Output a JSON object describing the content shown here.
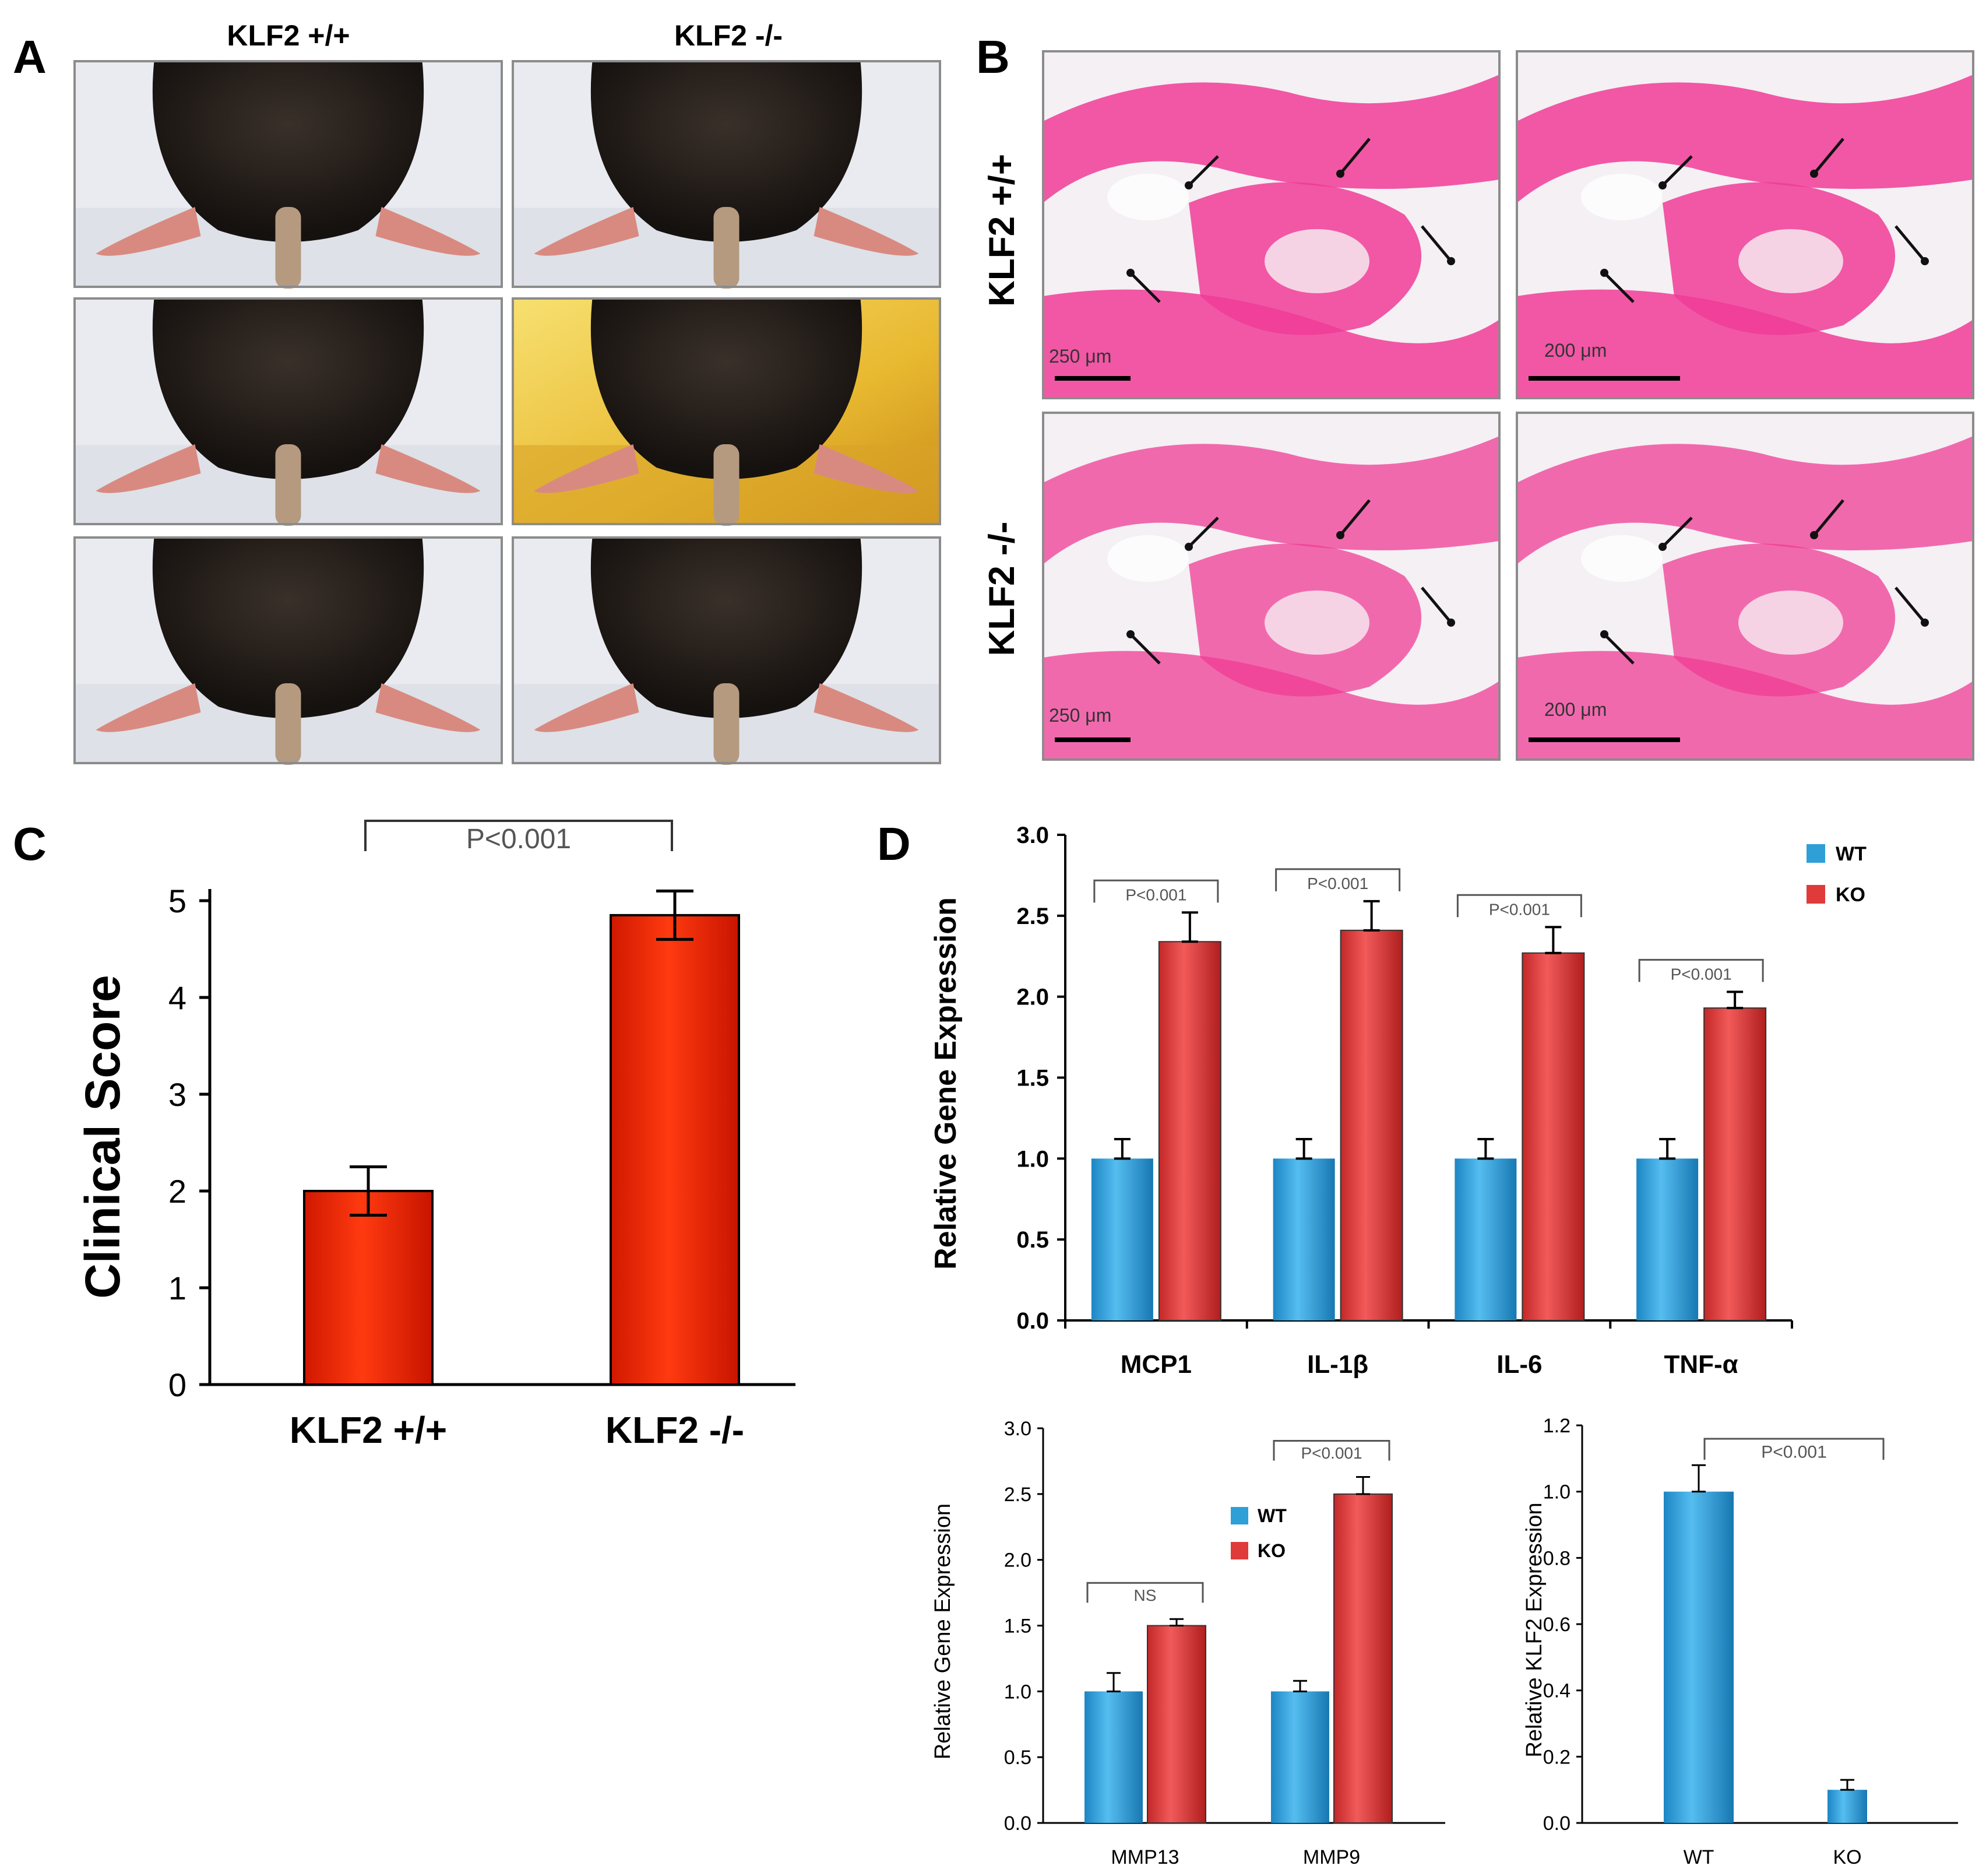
{
  "panel_letters": {
    "a": "A",
    "b": "B",
    "c": "C",
    "d": "D"
  },
  "panel_a": {
    "col_wt": "KLF2 +/+",
    "col_ko": "KLF2 -/-"
  },
  "panel_b": {
    "row_wt": "KLF2 +/+",
    "row_ko": "KLF2 -/-",
    "scale_low": "250 μm",
    "scale_high": "200 μm"
  },
  "colors": {
    "wt_bar": "#2F9FD8",
    "ko_bar": "#E03A3A",
    "clinical_bar": "#FF2200",
    "he_pink": "#F03C96",
    "he_light": "#F6D3E4",
    "mouse_fur": "#2a2420",
    "paw": "#d98a80"
  },
  "chart_data": [
    {
      "id": "C",
      "type": "bar",
      "title": "",
      "ylabel": "Clinical Score",
      "xlabel": "",
      "categories": [
        "KLF2 +/+",
        "KLF2 -/-"
      ],
      "values": [
        2.0,
        4.85
      ],
      "errors": [
        0.25,
        0.25
      ],
      "ylim": [
        0,
        5
      ],
      "yticks": [
        "0",
        "1",
        "2",
        "3",
        "4",
        "5"
      ],
      "annotations": [
        {
          "text": "P<0.001",
          "between": [
            0,
            1
          ]
        }
      ]
    },
    {
      "id": "D1",
      "type": "bar",
      "ylabel": "Relative Gene Expression",
      "categories": [
        "MCP1",
        "IL-1β",
        "IL-6",
        "TNF-α"
      ],
      "series": [
        {
          "name": "WT",
          "values": [
            1.0,
            1.0,
            1.0,
            1.0
          ],
          "errors": [
            0.12,
            0.12,
            0.12,
            0.12
          ]
        },
        {
          "name": "KO",
          "values": [
            2.34,
            2.41,
            2.27,
            1.93
          ],
          "errors": [
            0.18,
            0.18,
            0.16,
            0.1
          ]
        }
      ],
      "ylim": [
        0,
        3.0
      ],
      "yticks": [
        "0.0",
        "0.5",
        "1.0",
        "1.5",
        "2.0",
        "2.5",
        "3.0"
      ],
      "legend": [
        "WT",
        "KO"
      ],
      "legend_position": "top-right",
      "annotations": [
        {
          "text": "P<0.001",
          "category": 0
        },
        {
          "text": "P<0.001",
          "category": 1
        },
        {
          "text": "P<0.001",
          "category": 2
        },
        {
          "text": "P<0.001",
          "category": 3
        }
      ]
    },
    {
      "id": "D2",
      "type": "bar",
      "ylabel": "Relative Gene Expression",
      "categories": [
        "MMP13",
        "MMP9"
      ],
      "series": [
        {
          "name": "WT",
          "values": [
            1.0,
            1.0
          ],
          "errors": [
            0.14,
            0.08
          ]
        },
        {
          "name": "KO",
          "values": [
            1.5,
            2.5
          ],
          "errors": [
            0.05,
            0.13
          ]
        }
      ],
      "ylim": [
        0,
        3.0
      ],
      "yticks": [
        "0.0",
        "0.5",
        "1.0",
        "1.5",
        "2.0",
        "2.5",
        "3.0"
      ],
      "legend": [
        "WT",
        "KO"
      ],
      "legend_position": "center",
      "annotations": [
        {
          "text": "NS",
          "category": 0
        },
        {
          "text": "P<0.001",
          "category": 1
        }
      ]
    },
    {
      "id": "D3",
      "type": "bar",
      "ylabel": "Relative KLF2 Expression",
      "categories": [
        "WT",
        "KO"
      ],
      "values": [
        1.0,
        0.1
      ],
      "errors": [
        0.08,
        0.03
      ],
      "ylim": [
        0,
        1.2
      ],
      "yticks": [
        "0.0",
        "0.2",
        "0.4",
        "0.6",
        "0.8",
        "1.0",
        "1.2"
      ],
      "annotations": [
        {
          "text": "P<0.001",
          "between": [
            0,
            1
          ]
        }
      ]
    }
  ]
}
